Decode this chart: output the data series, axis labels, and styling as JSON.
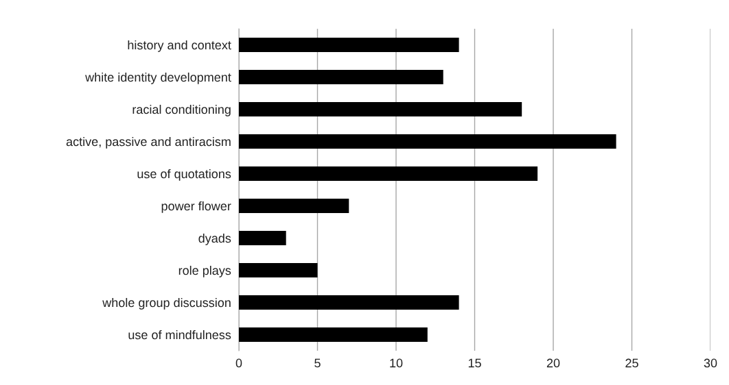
{
  "chart_data": {
    "type": "bar",
    "orientation": "horizontal",
    "categories": [
      "history and context",
      "white identity development",
      "racial conditioning",
      "active, passive and antiracism",
      "use of quotations",
      "power flower",
      "dyads",
      "role plays",
      "whole group discussion",
      "use of mindfulness"
    ],
    "values": [
      14,
      13,
      18,
      24,
      19,
      7,
      3,
      5,
      14,
      12
    ],
    "color": "#000000",
    "xlim": [
      0,
      30
    ],
    "xticks": [
      0,
      5,
      10,
      15,
      20,
      25,
      30
    ],
    "grid": "x",
    "legend": false
  }
}
